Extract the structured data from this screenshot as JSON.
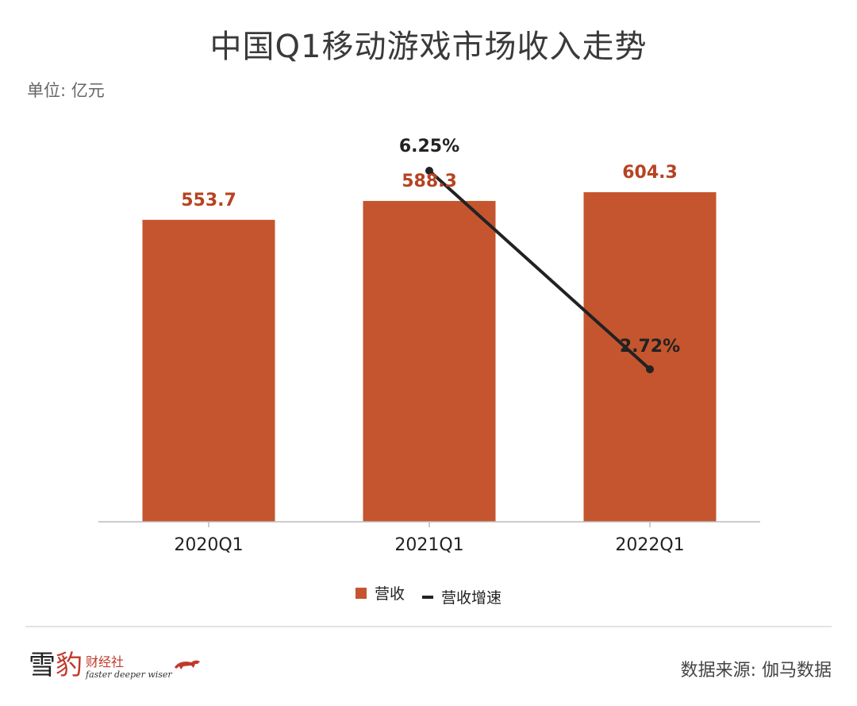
{
  "title": "中国Q1移动游戏市场收入走势",
  "unit_label": "单位: 亿元",
  "colors": {
    "bar": "#c5552e",
    "bar_label": "#b64322",
    "line": "#222222",
    "axis": "#bbbbbb"
  },
  "chart_data": {
    "type": "bar",
    "categories": [
      "2020Q1",
      "2021Q1",
      "2022Q1"
    ],
    "series": [
      {
        "name": "营收",
        "type": "bar",
        "values": [
          553.7,
          588.3,
          604.3
        ],
        "labels": [
          "553.7",
          "588.3",
          "604.3"
        ]
      },
      {
        "name": "营收增速",
        "type": "line",
        "values": [
          null,
          6.25,
          2.72
        ],
        "labels": [
          "",
          "6.25%",
          "2.72%"
        ]
      }
    ],
    "title": "中国Q1移动游戏市场收入走势",
    "ylabel": "单位: 亿元",
    "ylim": [
      0,
      700
    ],
    "y2lim": [
      0,
      7
    ],
    "grid": false,
    "legend": "bottom"
  },
  "legend": {
    "bar_label": "营收",
    "line_label": "营收增速"
  },
  "footer": {
    "brand_cn_1": "雪",
    "brand_cn_2": "豹",
    "brand_sub_cn": "财经社",
    "brand_sub_en": "faster deeper wiser",
    "source": "数据来源: 伽马数据"
  }
}
